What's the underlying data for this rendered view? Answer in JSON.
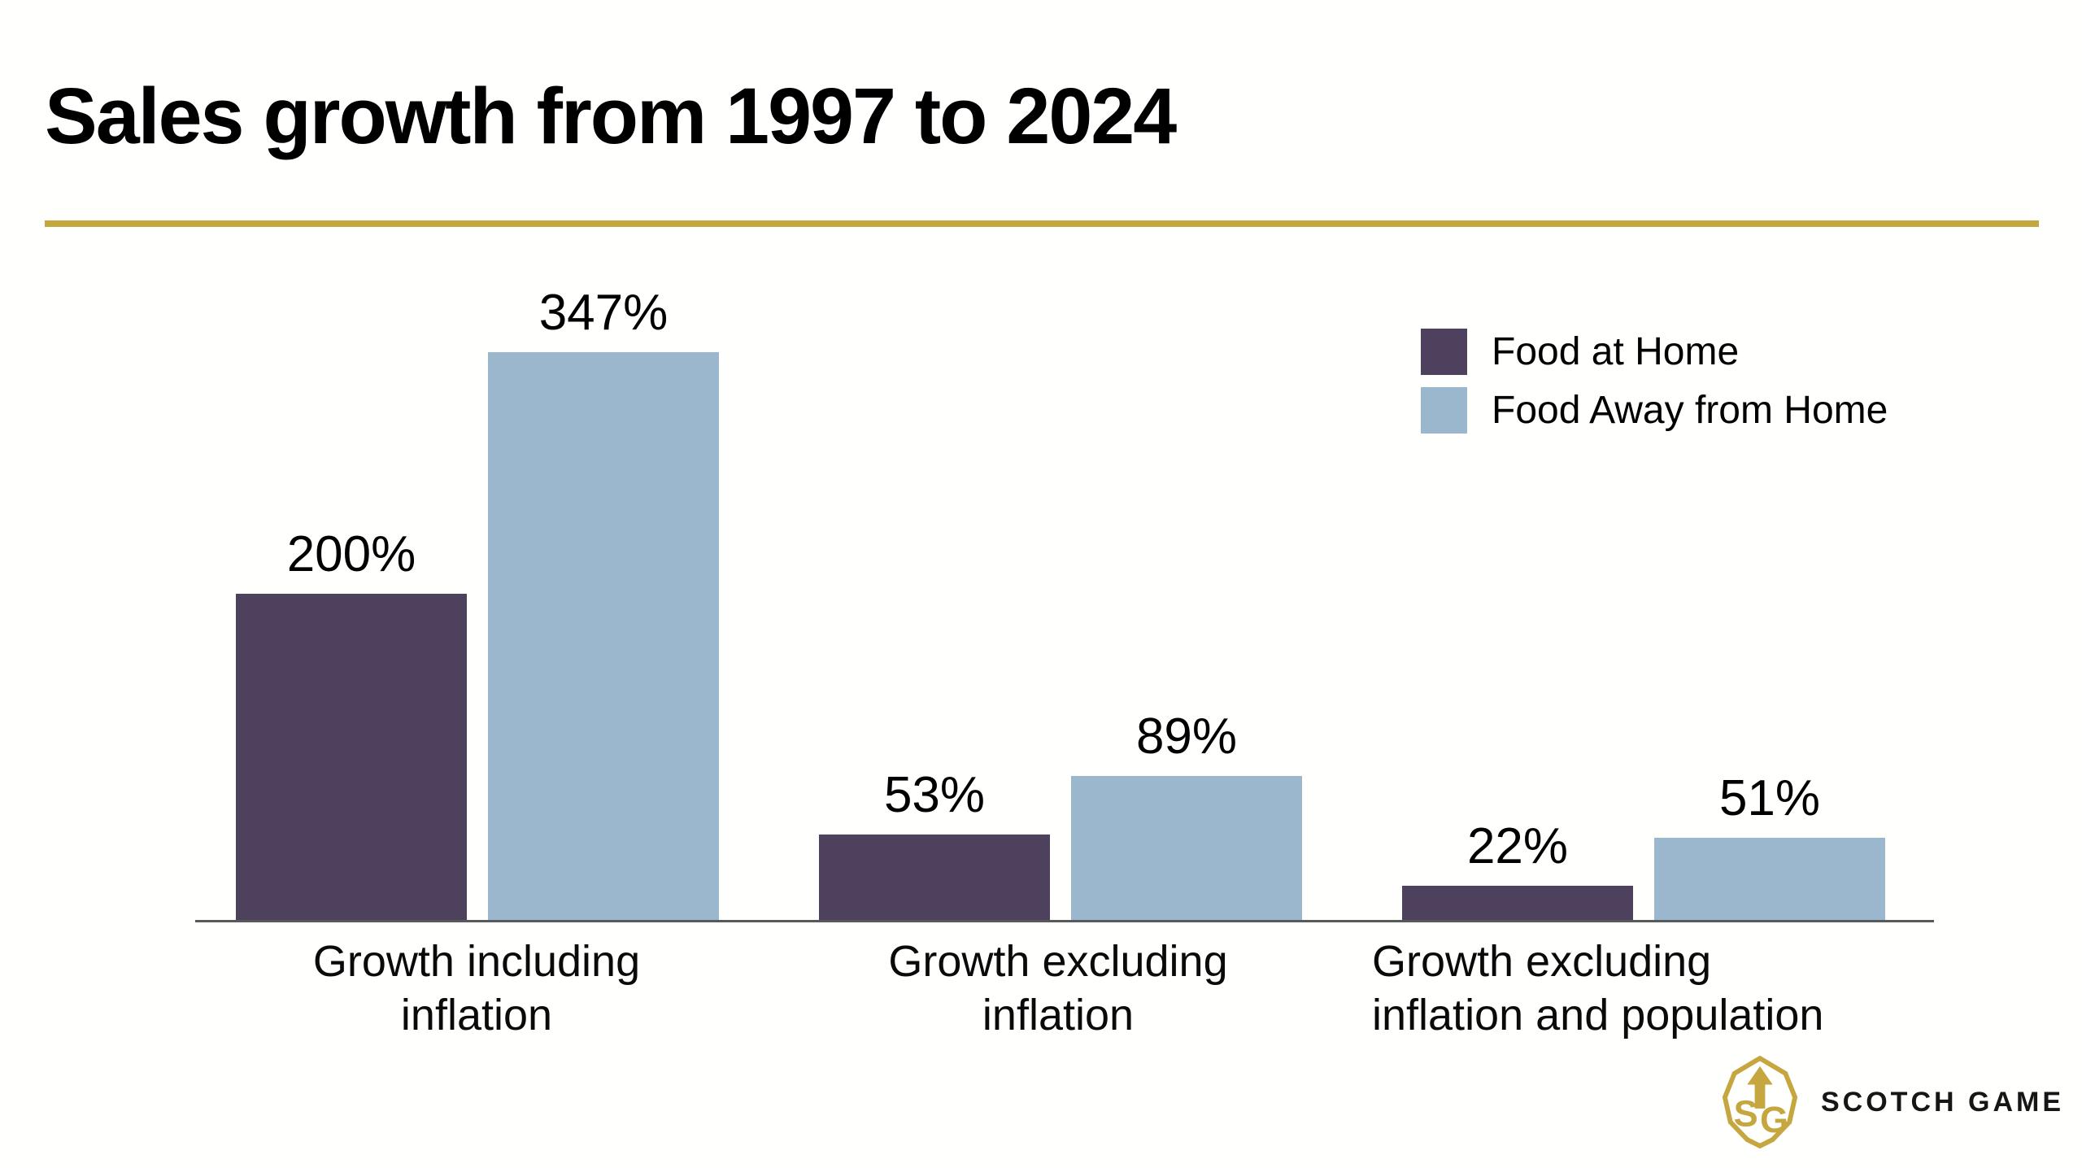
{
  "header": {
    "title": "Sales growth from 1997 to 2024"
  },
  "divider_color": "#C6A63F",
  "chart_data": {
    "type": "bar",
    "title": "Sales growth from 1997 to 2024",
    "categories": [
      "Growth including inflation",
      "Growth excluding inflation",
      "Growth excluding inflation and population"
    ],
    "series": [
      {
        "name": "Food at Home",
        "color": "#4D415E",
        "values": [
          200,
          53,
          22
        ]
      },
      {
        "name": "Food Away from Home",
        "color": "#9BB7CE",
        "values": [
          347,
          89,
          51
        ]
      }
    ],
    "value_labels": [
      [
        "200%",
        "53%",
        "22%"
      ],
      [
        "347%",
        "89%",
        "51%"
      ]
    ],
    "value_label_unit": "%",
    "ylim": [
      0,
      360
    ],
    "grid": false,
    "legend_position": "top-right",
    "xlabel": "",
    "ylabel": ""
  },
  "footer": {
    "brand": "SCOTCH GAME",
    "logo_icon": "leaf-monogram-icon",
    "brand_color": "#C6A63F"
  }
}
